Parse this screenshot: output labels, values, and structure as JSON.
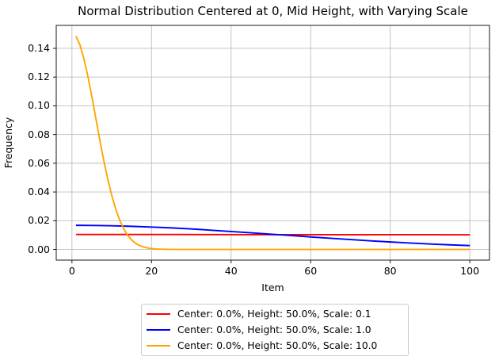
{
  "chart_data": {
    "type": "line",
    "title": "Normal Distribution Centered at 0, Mid Height, with Varying Scale",
    "xlabel": "Item",
    "ylabel": "Frequency",
    "xlim": [
      -3.95,
      104.95
    ],
    "ylim": [
      -0.00743,
      0.156
    ],
    "grid": true,
    "legend_position": "below",
    "x_ticks": [
      0,
      20,
      40,
      60,
      80,
      100
    ],
    "x_tick_labels": [
      "0",
      "20",
      "40",
      "60",
      "80",
      "100"
    ],
    "y_ticks": [
      0.0,
      0.02,
      0.04,
      0.06,
      0.08,
      0.1,
      0.12,
      0.14
    ],
    "y_tick_labels": [
      "0.00",
      "0.02",
      "0.04",
      "0.06",
      "0.08",
      "0.10",
      "0.12",
      "0.14"
    ],
    "series": [
      {
        "name": "Center: 0.0%, Height: 50.0%, Scale: 0.1",
        "color": "#ff0000",
        "x": [
          1,
          25,
          50,
          75,
          100
        ],
        "y": [
          0.0104,
          0.0104,
          0.0103,
          0.0103,
          0.0102
        ]
      },
      {
        "name": "Center: 0.0%, Height: 50.0%, Scale: 1.0",
        "color": "#0000ff",
        "x": [
          1,
          5,
          10,
          15,
          20,
          25,
          30,
          35,
          40,
          45,
          50,
          55,
          60,
          65,
          70,
          75,
          80,
          85,
          90,
          95,
          100
        ],
        "y": [
          0.0168,
          0.0167,
          0.0165,
          0.0161,
          0.0156,
          0.015,
          0.0143,
          0.0134,
          0.0125,
          0.0116,
          0.0106,
          0.0097,
          0.0087,
          0.0078,
          0.0069,
          0.006,
          0.0052,
          0.0045,
          0.0038,
          0.0032,
          0.0027
        ]
      },
      {
        "name": "Center: 0.0%, Height: 50.0%, Scale: 10.0",
        "color": "#ffa500",
        "x": [
          1,
          2,
          3,
          4,
          5,
          6,
          7,
          8,
          9,
          10,
          11,
          12,
          13,
          14,
          15,
          16,
          17,
          18,
          19,
          20,
          21,
          22,
          23,
          25,
          30,
          40,
          60,
          80,
          100
        ],
        "y": [
          0.1485,
          0.1425,
          0.1329,
          0.1206,
          0.1064,
          0.0913,
          0.0762,
          0.0619,
          0.0489,
          0.0376,
          0.0281,
          0.0204,
          0.0144,
          0.0099,
          0.0066,
          0.0043,
          0.0027,
          0.0017,
          0.001,
          0.0006,
          0.0003,
          0.0002,
          0.0001,
          0.0,
          0.0,
          0.0,
          0.0,
          0.0,
          0.0
        ]
      }
    ]
  },
  "style": {
    "grid_color": "#bdbdbd",
    "frame_color": "#1a1a1a",
    "line_width": 1.9
  }
}
